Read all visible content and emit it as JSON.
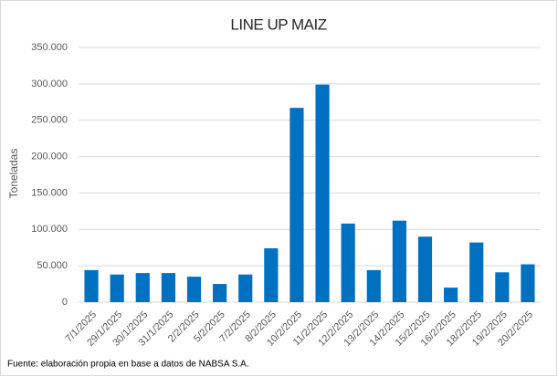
{
  "chart_data": {
    "type": "bar",
    "title": "LINE UP MAIZ",
    "y_label": "Toneladas",
    "categories": [
      "7/1/2025",
      "29/1/2025",
      "30/1/2025",
      "31/1/2025",
      "2/2/2025",
      "5/2/2025",
      "7/2/2025",
      "8/2/2025",
      "10/2/2025",
      "11/2/2025",
      "12/2/2025",
      "13/2/2025",
      "14/2/2025",
      "15/2/2025",
      "16/2/2025",
      "18/2/2025",
      "19/2/2025",
      "20/2/2025"
    ],
    "values": [
      44000,
      38000,
      40000,
      40000,
      35000,
      25000,
      38000,
      74000,
      267000,
      299000,
      108000,
      44000,
      112000,
      90000,
      20000,
      82000,
      41000,
      52000
    ],
    "color": "#0070c0",
    "ylim": [
      0,
      350000
    ],
    "yticks": [
      0,
      {
        "value": 50000,
        "label": "50.000"
      },
      {
        "value": 100000,
        "label": "100.000"
      },
      {
        "value": 150000,
        "label": "150.000"
      },
      {
        "value": 200000,
        "label": "200.000"
      },
      {
        "value": 250000,
        "label": "250.000"
      },
      {
        "value": 300000,
        "label": "300.000"
      },
      {
        "value": 350000,
        "label": "350.000"
      }
    ],
    "grid": true,
    "source": "Fuente: elaboración propia en base a datos de NABSA S.A."
  }
}
